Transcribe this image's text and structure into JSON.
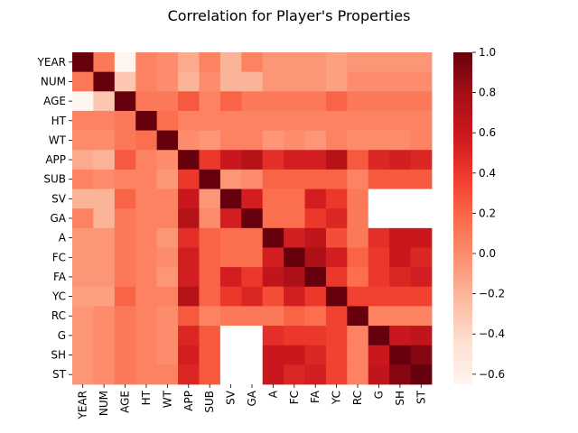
{
  "chart_data": {
    "type": "heatmap",
    "title": "Correlation for Player's Properties",
    "xlabel": "",
    "ylabel": "",
    "labels": [
      "YEAR",
      "NUM",
      "AGE",
      "HT",
      "WT",
      "APP",
      "SUB",
      "SV",
      "GA",
      "A",
      "FC",
      "FA",
      "YC",
      "RC",
      "G",
      "SH",
      "ST"
    ],
    "colorbar": {
      "min": -0.65,
      "max": 1.0,
      "ticks": [
        1.0,
        0.8,
        0.6,
        0.4,
        0.2,
        0.0,
        -0.2,
        -0.4,
        -0.6
      ],
      "tick_labels": [
        "1.0",
        "0.8",
        "0.6",
        "0.4",
        "0.2",
        "0.0",
        "−0.2",
        "−0.4",
        "−0.6"
      ]
    },
    "colormap_stops": [
      "#fff5f0",
      "#fee0d2",
      "#fcbba1",
      "#fc9272",
      "#fb6a4a",
      "#ef3b2c",
      "#cb181d",
      "#a50f15",
      "#67000d"
    ],
    "missing_color": "#ffffff",
    "matrix": [
      [
        1.0,
        0.1,
        -0.65,
        0.05,
        0.0,
        -0.15,
        0.05,
        -0.2,
        0.05,
        -0.05,
        -0.05,
        -0.05,
        -0.1,
        -0.05,
        -0.05,
        -0.05,
        -0.05
      ],
      [
        0.1,
        1.0,
        -0.3,
        0.05,
        0.0,
        -0.2,
        0.0,
        -0.2,
        -0.2,
        -0.05,
        -0.05,
        -0.05,
        -0.1,
        0.0,
        0.0,
        0.0,
        0.0
      ],
      [
        -0.65,
        -0.3,
        1.0,
        0.1,
        0.1,
        0.25,
        0.05,
        0.2,
        0.1,
        0.1,
        0.1,
        0.1,
        0.2,
        0.1,
        0.1,
        0.1,
        0.1
      ],
      [
        0.05,
        0.05,
        0.1,
        1.0,
        0.15,
        0.05,
        0.05,
        0.05,
        0.05,
        0.05,
        0.05,
        0.05,
        0.05,
        0.05,
        0.05,
        0.05,
        0.05
      ],
      [
        0.0,
        0.0,
        0.1,
        0.15,
        1.0,
        0.0,
        -0.05,
        0.05,
        0.05,
        -0.05,
        0.0,
        -0.05,
        0.05,
        0.0,
        0.0,
        0.0,
        0.05
      ],
      [
        -0.15,
        -0.2,
        0.25,
        0.05,
        0.0,
        1.0,
        0.4,
        0.6,
        0.7,
        0.45,
        0.55,
        0.55,
        0.7,
        0.25,
        0.5,
        0.55,
        0.5
      ],
      [
        0.05,
        0.0,
        0.05,
        0.05,
        -0.05,
        0.4,
        1.0,
        -0.05,
        0.0,
        0.2,
        0.2,
        0.2,
        0.2,
        0.05,
        0.25,
        0.25,
        0.25
      ],
      [
        -0.2,
        -0.2,
        0.2,
        0.05,
        0.05,
        0.6,
        -0.05,
        1.0,
        0.55,
        0.15,
        0.15,
        0.55,
        0.4,
        0.1,
        null,
        null,
        null
      ],
      [
        0.05,
        -0.2,
        0.1,
        0.05,
        0.05,
        0.7,
        0.0,
        0.55,
        1.0,
        0.15,
        0.15,
        0.4,
        0.5,
        0.1,
        null,
        null,
        null
      ],
      [
        -0.05,
        -0.05,
        0.1,
        0.05,
        -0.05,
        0.45,
        0.2,
        0.15,
        0.15,
        1.0,
        0.55,
        0.65,
        0.3,
        0.1,
        0.45,
        0.6,
        0.6
      ],
      [
        -0.05,
        -0.05,
        0.1,
        0.05,
        0.0,
        0.55,
        0.2,
        0.15,
        0.15,
        0.55,
        1.0,
        0.75,
        0.55,
        0.2,
        0.4,
        0.6,
        0.5
      ],
      [
        -0.05,
        -0.05,
        0.1,
        0.05,
        -0.05,
        0.55,
        0.2,
        0.55,
        0.4,
        0.65,
        0.75,
        1.0,
        0.4,
        0.15,
        0.4,
        0.5,
        0.55
      ],
      [
        -0.1,
        -0.1,
        0.2,
        0.05,
        0.05,
        0.7,
        0.2,
        0.4,
        0.5,
        0.3,
        0.55,
        0.4,
        1.0,
        0.35,
        0.35,
        0.35,
        0.35
      ],
      [
        -0.05,
        0.0,
        0.1,
        0.05,
        0.0,
        0.25,
        0.05,
        0.1,
        0.1,
        0.1,
        0.2,
        0.15,
        0.35,
        1.0,
        0.05,
        0.05,
        0.05
      ],
      [
        -0.05,
        0.0,
        0.1,
        0.05,
        0.0,
        0.5,
        0.25,
        null,
        null,
        0.45,
        0.4,
        0.4,
        0.35,
        0.05,
        1.0,
        0.6,
        0.65
      ],
      [
        -0.05,
        0.0,
        0.1,
        0.05,
        0.0,
        0.55,
        0.25,
        null,
        null,
        0.6,
        0.6,
        0.5,
        0.35,
        0.05,
        0.6,
        1.0,
        0.9
      ],
      [
        -0.05,
        0.0,
        0.1,
        0.05,
        0.05,
        0.5,
        0.25,
        null,
        null,
        0.6,
        0.5,
        0.55,
        0.35,
        0.05,
        0.65,
        0.9,
        1.0
      ]
    ]
  }
}
